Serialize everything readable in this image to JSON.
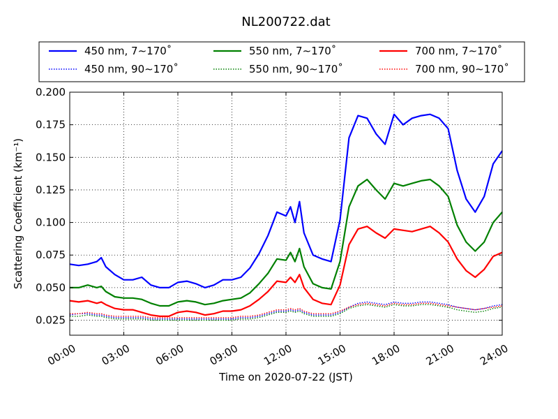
{
  "chart_data": {
    "type": "line",
    "title": "NL200722.dat",
    "xlabel": "Time on 2020-07-22 (JST)",
    "ylabel": "Scattering Coefficient (km⁻¹)",
    "x_unit": "hours",
    "xlim": [
      0,
      24
    ],
    "ylim": [
      0.0135,
      0.2
    ],
    "grid": true,
    "legend_position": "top",
    "x_ticks": [
      0,
      3,
      6,
      9,
      12,
      15,
      18,
      21,
      24
    ],
    "x_tick_labels": [
      "00:00",
      "03:00",
      "06:00",
      "09:00",
      "12:00",
      "15:00",
      "18:00",
      "21:00",
      "24:00"
    ],
    "y_ticks": [
      0.025,
      0.05,
      0.075,
      0.1,
      0.125,
      0.15,
      0.175,
      0.2
    ],
    "y_tick_labels": [
      "0.025",
      "0.050",
      "0.075",
      "0.100",
      "0.125",
      "0.150",
      "0.175",
      "0.200"
    ],
    "x": [
      0,
      0.5,
      1,
      1.5,
      1.75,
      2,
      2.5,
      3,
      3.5,
      4,
      4.5,
      5,
      5.5,
      6,
      6.5,
      7,
      7.5,
      8,
      8.5,
      9,
      9.5,
      10,
      10.5,
      11,
      11.5,
      12,
      12.25,
      12.5,
      12.75,
      13,
      13.5,
      14,
      14.5,
      15,
      15.5,
      16,
      16.5,
      17,
      17.5,
      18,
      18.5,
      19,
      19.5,
      20,
      20.5,
      21,
      21.5,
      22,
      22.5,
      23,
      23.5,
      24
    ],
    "series": [
      {
        "name": "450 nm, 7∼170˚",
        "color": "#0000ff",
        "style": "solid",
        "values": [
          0.068,
          0.067,
          0.068,
          0.07,
          0.073,
          0.066,
          0.06,
          0.056,
          0.056,
          0.058,
          0.052,
          0.05,
          0.05,
          0.054,
          0.055,
          0.053,
          0.05,
          0.052,
          0.056,
          0.056,
          0.058,
          0.065,
          0.076,
          0.09,
          0.108,
          0.105,
          0.112,
          0.1,
          0.116,
          0.092,
          0.075,
          0.072,
          0.07,
          0.102,
          0.165,
          0.182,
          0.18,
          0.168,
          0.16,
          0.183,
          0.175,
          0.18,
          0.182,
          0.183,
          0.18,
          0.172,
          0.14,
          0.118,
          0.108,
          0.12,
          0.145,
          0.155
        ]
      },
      {
        "name": "550 nm, 7∼170˚",
        "color": "#008000",
        "style": "solid",
        "values": [
          0.05,
          0.05,
          0.052,
          0.05,
          0.051,
          0.047,
          0.043,
          0.042,
          0.042,
          0.041,
          0.038,
          0.036,
          0.036,
          0.039,
          0.04,
          0.039,
          0.037,
          0.038,
          0.04,
          0.041,
          0.042,
          0.046,
          0.053,
          0.061,
          0.072,
          0.071,
          0.077,
          0.07,
          0.08,
          0.066,
          0.053,
          0.05,
          0.049,
          0.07,
          0.112,
          0.128,
          0.133,
          0.125,
          0.118,
          0.13,
          0.128,
          0.13,
          0.132,
          0.133,
          0.128,
          0.12,
          0.098,
          0.085,
          0.078,
          0.085,
          0.1,
          0.108
        ]
      },
      {
        "name": "700 nm, 7∼170˚",
        "color": "#ff0000",
        "style": "solid",
        "values": [
          0.04,
          0.039,
          0.04,
          0.038,
          0.039,
          0.037,
          0.034,
          0.033,
          0.033,
          0.031,
          0.029,
          0.028,
          0.028,
          0.031,
          0.032,
          0.031,
          0.029,
          0.03,
          0.032,
          0.032,
          0.033,
          0.036,
          0.041,
          0.047,
          0.055,
          0.054,
          0.058,
          0.054,
          0.06,
          0.05,
          0.041,
          0.038,
          0.037,
          0.052,
          0.083,
          0.095,
          0.097,
          0.092,
          0.088,
          0.095,
          0.094,
          0.093,
          0.095,
          0.097,
          0.092,
          0.085,
          0.072,
          0.063,
          0.058,
          0.064,
          0.074,
          0.077
        ]
      },
      {
        "name": "450 nm, 90∼170˚",
        "color": "#0000ff",
        "style": "dotted",
        "values": [
          0.029,
          0.03,
          0.03,
          0.029,
          0.029,
          0.028,
          0.027,
          0.027,
          0.027,
          0.027,
          0.026,
          0.026,
          0.026,
          0.026,
          0.026,
          0.026,
          0.026,
          0.026,
          0.026,
          0.026,
          0.027,
          0.027,
          0.028,
          0.03,
          0.032,
          0.032,
          0.033,
          0.032,
          0.033,
          0.031,
          0.029,
          0.029,
          0.029,
          0.031,
          0.035,
          0.038,
          0.039,
          0.038,
          0.037,
          0.039,
          0.038,
          0.038,
          0.039,
          0.039,
          0.038,
          0.037,
          0.035,
          0.034,
          0.033,
          0.034,
          0.036,
          0.037
        ]
      },
      {
        "name": "550 nm, 90∼170˚",
        "color": "#008000",
        "style": "dotted",
        "values": [
          0.028,
          0.028,
          0.029,
          0.028,
          0.028,
          0.027,
          0.026,
          0.026,
          0.026,
          0.026,
          0.025,
          0.025,
          0.025,
          0.025,
          0.025,
          0.025,
          0.025,
          0.025,
          0.025,
          0.025,
          0.026,
          0.026,
          0.027,
          0.029,
          0.031,
          0.031,
          0.032,
          0.031,
          0.032,
          0.03,
          0.028,
          0.028,
          0.028,
          0.03,
          0.034,
          0.036,
          0.037,
          0.036,
          0.035,
          0.037,
          0.036,
          0.036,
          0.037,
          0.037,
          0.036,
          0.035,
          0.033,
          0.032,
          0.031,
          0.032,
          0.034,
          0.035
        ]
      },
      {
        "name": "700 nm, 90∼170˚",
        "color": "#ff0000",
        "style": "dotted",
        "values": [
          0.03,
          0.03,
          0.031,
          0.03,
          0.03,
          0.029,
          0.028,
          0.028,
          0.028,
          0.028,
          0.027,
          0.027,
          0.027,
          0.027,
          0.027,
          0.027,
          0.027,
          0.027,
          0.027,
          0.027,
          0.028,
          0.028,
          0.029,
          0.031,
          0.033,
          0.033,
          0.034,
          0.033,
          0.034,
          0.032,
          0.03,
          0.03,
          0.03,
          0.032,
          0.035,
          0.037,
          0.038,
          0.037,
          0.036,
          0.038,
          0.037,
          0.037,
          0.038,
          0.038,
          0.037,
          0.036,
          0.035,
          0.034,
          0.033,
          0.034,
          0.035,
          0.036
        ]
      }
    ]
  }
}
